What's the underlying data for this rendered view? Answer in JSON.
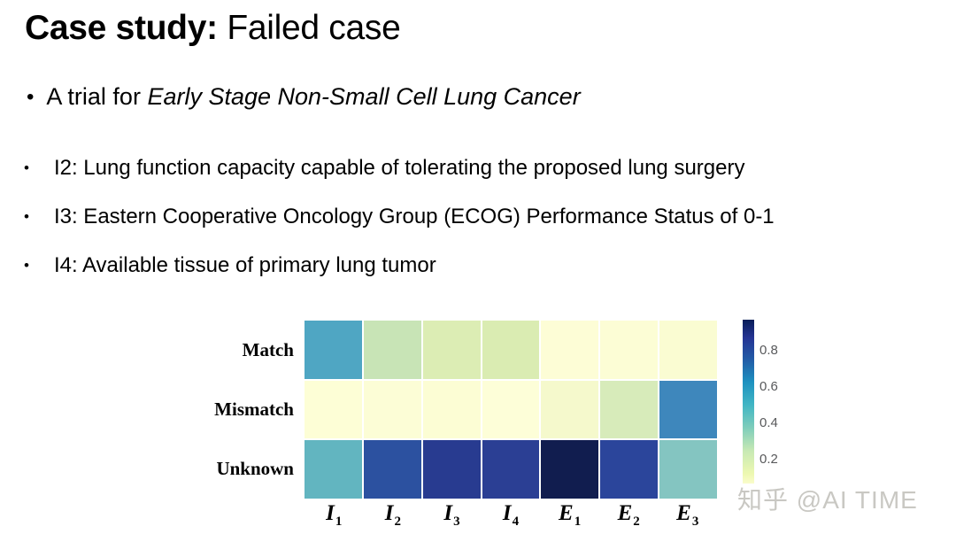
{
  "ui": {
    "bullet": "•"
  },
  "title": {
    "bold": "Case study:",
    "rest": " Failed case"
  },
  "intro": {
    "prefix": "A trial for ",
    "italic": "Early Stage Non-Small Cell Lung Cancer"
  },
  "bullets": [
    "I2: Lung function capacity capable of tolerating the proposed lung surgery",
    "I3: Eastern Cooperative Oncology Group (ECOG) Performance Status of 0-1",
    "I4: Available tissue of primary lung tumor"
  ],
  "watermark": "知乎 @AI TIME",
  "chart_data": {
    "type": "heatmap",
    "title": "",
    "rows": [
      "Match",
      "Mismatch",
      "Unknown"
    ],
    "columns": [
      "I1",
      "I2",
      "I3",
      "I4",
      "E1",
      "E2",
      "E3"
    ],
    "column_labels": [
      {
        "base": "I",
        "sub": "1"
      },
      {
        "base": "I",
        "sub": "2"
      },
      {
        "base": "I",
        "sub": "3"
      },
      {
        "base": "I",
        "sub": "4"
      },
      {
        "base": "E",
        "sub": "1"
      },
      {
        "base": "E",
        "sub": "2"
      },
      {
        "base": "E",
        "sub": "3"
      }
    ],
    "values": [
      [
        0.52,
        0.3,
        0.24,
        0.24,
        0.05,
        0.05,
        0.06
      ],
      [
        0.04,
        0.04,
        0.05,
        0.04,
        0.08,
        0.22,
        0.6
      ],
      [
        0.44,
        0.78,
        0.86,
        0.84,
        0.97,
        0.82,
        0.42
      ]
    ],
    "cell_colors": [
      [
        "#4FA6C3",
        "#C8E4B6",
        "#DCEDB4",
        "#DAECB2",
        "#FDFDD6",
        "#FCFDD5",
        "#FAFCD2"
      ],
      [
        "#FDFED6",
        "#FCFDD6",
        "#FCFDD4",
        "#FDFED8",
        "#F5F9CC",
        "#D7EBBA",
        "#3E87BC"
      ],
      [
        "#62B5C0",
        "#2C51A0",
        "#283B90",
        "#2B3F94",
        "#111D4F",
        "#2B459B",
        "#84C5C1"
      ]
    ],
    "colormap": "YlGnBu",
    "legend_position": "right",
    "colorbar": {
      "ticks": [
        "0.8",
        "0.6",
        "0.4",
        "0.2"
      ],
      "vmax": 0.97,
      "vmin": 0.07,
      "gradient_stops": [
        {
          "color": "#081D58",
          "pos": "0%"
        },
        {
          "color": "#253494",
          "pos": "11%"
        },
        {
          "color": "#225EA8",
          "pos": "25%"
        },
        {
          "color": "#1D91C0",
          "pos": "38%"
        },
        {
          "color": "#41B6C4",
          "pos": "52%"
        },
        {
          "color": "#7FCDBB",
          "pos": "66%"
        },
        {
          "color": "#C7E9B4",
          "pos": "80%"
        },
        {
          "color": "#EDF8B1",
          "pos": "94%"
        },
        {
          "color": "#FAFCCC",
          "pos": "100%"
        }
      ]
    }
  }
}
